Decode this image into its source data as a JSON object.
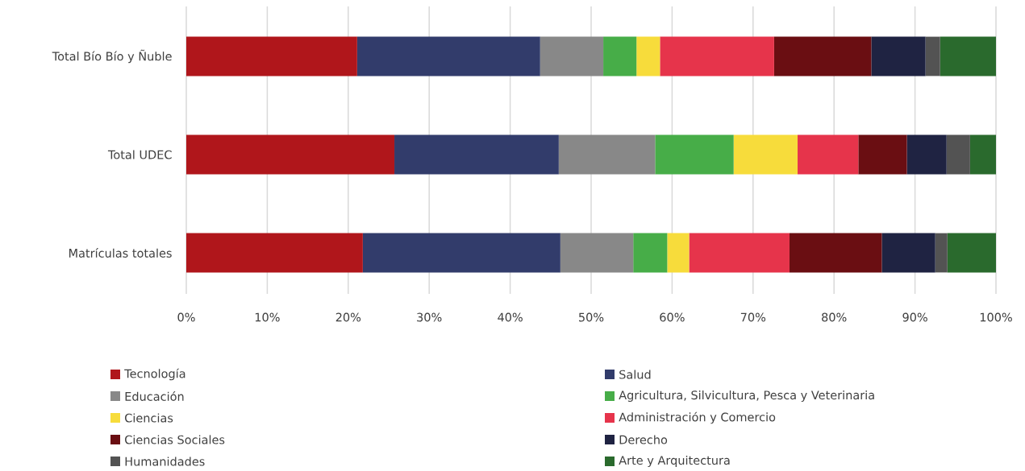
{
  "chart_data": {
    "type": "bar",
    "orientation": "horizontal",
    "stacked": true,
    "categories": [
      "Total Bío Bío y Ñuble",
      "Total UDEC",
      "Matrículas totales"
    ],
    "series": [
      {
        "name": "Tecnología",
        "color": "#b0161b",
        "values": [
          21.1,
          25.7,
          21.8
        ]
      },
      {
        "name": "Salud",
        "color": "#323c6b",
        "values": [
          22.6,
          20.3,
          24.4
        ]
      },
      {
        "name": "Educación",
        "color": "#888888",
        "values": [
          7.8,
          11.9,
          9.0
        ]
      },
      {
        "name": "Agricultura, Silvicultura, Pesca y Veterinaria",
        "color": "#47ad48",
        "values": [
          4.1,
          9.7,
          4.2
        ]
      },
      {
        "name": "Ciencias",
        "color": "#f7dc3b",
        "values": [
          2.9,
          7.9,
          2.7
        ]
      },
      {
        "name": "Administración y Comercio",
        "color": "#e6344b",
        "values": [
          14.1,
          7.5,
          12.4
        ]
      },
      {
        "name": "Ciencias Sociales",
        "color": "#6a0e12",
        "values": [
          12.0,
          6.0,
          11.4
        ]
      },
      {
        "name": "Derecho",
        "color": "#1f2342",
        "values": [
          6.7,
          4.9,
          6.6
        ]
      },
      {
        "name": "Humanidades",
        "color": "#535353",
        "values": [
          1.8,
          2.9,
          1.5
        ]
      },
      {
        "name": "Arte y Arquitectura",
        "color": "#2a6a2d",
        "values": [
          6.9,
          3.2,
          6.0
        ]
      }
    ],
    "xlim": [
      0,
      100
    ],
    "xticks": [
      {
        "value": 0,
        "label": "0%"
      },
      {
        "value": 10,
        "label": "10%"
      },
      {
        "value": 20,
        "label": "20%"
      },
      {
        "value": 30,
        "label": "30%"
      },
      {
        "value": 40,
        "label": "40%"
      },
      {
        "value": 50,
        "label": "50%"
      },
      {
        "value": 60,
        "label": "60%"
      },
      {
        "value": 70,
        "label": "70%"
      },
      {
        "value": 80,
        "label": "80%"
      },
      {
        "value": 90,
        "label": "90%"
      },
      {
        "value": 100,
        "label": "100%"
      }
    ],
    "grid": "x",
    "legend": "bottom"
  }
}
